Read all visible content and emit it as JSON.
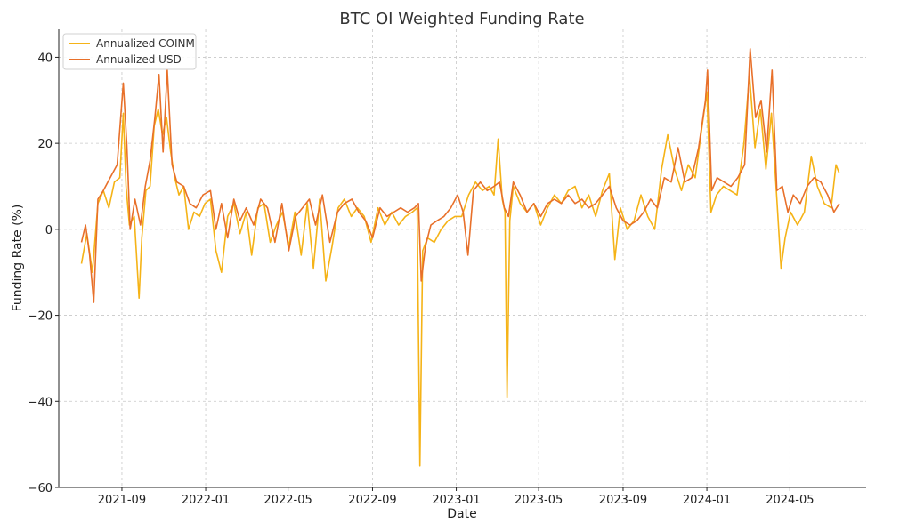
{
  "chart_data": {
    "type": "line",
    "title": "BTC OI Weighted Funding Rate",
    "xlabel": "Date",
    "ylabel": "Funding Rate (%)",
    "xlim": [
      "2021-06-01",
      "2024-08-20"
    ],
    "ylim": [
      -60,
      46.5
    ],
    "yticks": [
      -60,
      -40,
      -20,
      0,
      20,
      40
    ],
    "ytick_labels": [
      "−60",
      "−40",
      "−20",
      "0",
      "20",
      "40"
    ],
    "xticks": [
      "2021-09-01",
      "2022-01-01",
      "2022-05-01",
      "2022-09-01",
      "2023-01-01",
      "2023-05-01",
      "2023-09-01",
      "2024-01-01",
      "2024-05-01"
    ],
    "xtick_labels": [
      "2021-09",
      "2022-01",
      "2022-05",
      "2022-09",
      "2023-01",
      "2023-05",
      "2023-09",
      "2024-01",
      "2024-05"
    ],
    "grid": true,
    "legend": {
      "position": "top-left"
    },
    "series": [
      {
        "name": "Annualized COINM",
        "color": "#f5b317",
        "points": [
          [
            "2021-07-04",
            -8
          ],
          [
            "2021-07-12",
            -1
          ],
          [
            "2021-07-20",
            -10
          ],
          [
            "2021-07-28",
            6
          ],
          [
            "2021-08-05",
            9
          ],
          [
            "2021-08-13",
            5
          ],
          [
            "2021-08-21",
            11
          ],
          [
            "2021-08-29",
            12
          ],
          [
            "2021-09-03",
            27
          ],
          [
            "2021-09-07",
            10
          ],
          [
            "2021-09-12",
            1
          ],
          [
            "2021-09-19",
            3
          ],
          [
            "2021-09-26",
            -16
          ],
          [
            "2021-09-30",
            -2
          ],
          [
            "2021-10-06",
            9
          ],
          [
            "2021-10-12",
            10
          ],
          [
            "2021-10-18",
            24
          ],
          [
            "2021-10-24",
            28
          ],
          [
            "2021-10-30",
            22
          ],
          [
            "2021-11-05",
            26
          ],
          [
            "2021-11-11",
            18
          ],
          [
            "2021-11-17",
            12
          ],
          [
            "2021-11-23",
            8
          ],
          [
            "2021-11-30",
            10
          ],
          [
            "2021-12-07",
            0
          ],
          [
            "2021-12-15",
            4
          ],
          [
            "2021-12-23",
            3
          ],
          [
            "2021-12-31",
            6
          ],
          [
            "2022-01-08",
            7
          ],
          [
            "2022-01-16",
            -5
          ],
          [
            "2022-01-24",
            -10
          ],
          [
            "2022-02-02",
            3
          ],
          [
            "2022-02-11",
            6
          ],
          [
            "2022-02-20",
            -1
          ],
          [
            "2022-03-01",
            4
          ],
          [
            "2022-03-09",
            -6
          ],
          [
            "2022-03-18",
            5
          ],
          [
            "2022-03-27",
            6
          ],
          [
            "2022-04-05",
            -3
          ],
          [
            "2022-04-14",
            1
          ],
          [
            "2022-04-23",
            4
          ],
          [
            "2022-05-02",
            -4
          ],
          [
            "2022-05-11",
            4
          ],
          [
            "2022-05-20",
            -6
          ],
          [
            "2022-05-29",
            6
          ],
          [
            "2022-06-07",
            -9
          ],
          [
            "2022-06-16",
            7
          ],
          [
            "2022-06-25",
            -12
          ],
          [
            "2022-07-04",
            -4
          ],
          [
            "2022-07-13",
            5
          ],
          [
            "2022-07-22",
            7
          ],
          [
            "2022-08-01",
            3
          ],
          [
            "2022-08-10",
            5
          ],
          [
            "2022-08-20",
            3
          ],
          [
            "2022-08-30",
            -3
          ],
          [
            "2022-09-09",
            5
          ],
          [
            "2022-09-19",
            1
          ],
          [
            "2022-09-29",
            4
          ],
          [
            "2022-10-09",
            1
          ],
          [
            "2022-10-19",
            3
          ],
          [
            "2022-10-29",
            4
          ],
          [
            "2022-11-05",
            5
          ],
          [
            "2022-11-09",
            -55
          ],
          [
            "2022-11-13",
            -5
          ],
          [
            "2022-11-20",
            -2
          ],
          [
            "2022-11-30",
            -3
          ],
          [
            "2022-12-10",
            0
          ],
          [
            "2022-12-20",
            2
          ],
          [
            "2022-12-30",
            3
          ],
          [
            "2023-01-09",
            3
          ],
          [
            "2023-01-19",
            8
          ],
          [
            "2023-01-29",
            11
          ],
          [
            "2023-02-08",
            9
          ],
          [
            "2023-02-18",
            10
          ],
          [
            "2023-02-25",
            8
          ],
          [
            "2023-03-03",
            21
          ],
          [
            "2023-03-09",
            7
          ],
          [
            "2023-03-13",
            4
          ],
          [
            "2023-03-16",
            -39
          ],
          [
            "2023-03-20",
            2
          ],
          [
            "2023-03-25",
            10
          ],
          [
            "2023-04-04",
            6
          ],
          [
            "2023-04-14",
            4
          ],
          [
            "2023-04-24",
            6
          ],
          [
            "2023-05-04",
            1
          ],
          [
            "2023-05-14",
            5
          ],
          [
            "2023-05-24",
            8
          ],
          [
            "2023-06-03",
            6
          ],
          [
            "2023-06-13",
            9
          ],
          [
            "2023-06-23",
            10
          ],
          [
            "2023-07-03",
            5
          ],
          [
            "2023-07-13",
            8
          ],
          [
            "2023-07-23",
            3
          ],
          [
            "2023-08-02",
            9
          ],
          [
            "2023-08-12",
            13
          ],
          [
            "2023-08-20",
            -7
          ],
          [
            "2023-08-28",
            5
          ],
          [
            "2023-09-07",
            0
          ],
          [
            "2023-09-17",
            2
          ],
          [
            "2023-09-27",
            8
          ],
          [
            "2023-10-07",
            3
          ],
          [
            "2023-10-17",
            0
          ],
          [
            "2023-10-27",
            14
          ],
          [
            "2023-11-05",
            22
          ],
          [
            "2023-11-15",
            14
          ],
          [
            "2023-11-25",
            9
          ],
          [
            "2023-12-05",
            15
          ],
          [
            "2023-12-15",
            12
          ],
          [
            "2023-12-25",
            24
          ],
          [
            "2024-01-01",
            32
          ],
          [
            "2024-01-07",
            4
          ],
          [
            "2024-01-15",
            8
          ],
          [
            "2024-01-25",
            10
          ],
          [
            "2024-02-04",
            9
          ],
          [
            "2024-02-14",
            8
          ],
          [
            "2024-02-24",
            20
          ],
          [
            "2024-03-03",
            36
          ],
          [
            "2024-03-11",
            19
          ],
          [
            "2024-03-19",
            28
          ],
          [
            "2024-03-27",
            14
          ],
          [
            "2024-04-04",
            27
          ],
          [
            "2024-04-12",
            7
          ],
          [
            "2024-04-18",
            -9
          ],
          [
            "2024-04-24",
            -2
          ],
          [
            "2024-05-02",
            4
          ],
          [
            "2024-05-12",
            1
          ],
          [
            "2024-05-22",
            4
          ],
          [
            "2024-06-01",
            17
          ],
          [
            "2024-06-10",
            10
          ],
          [
            "2024-06-20",
            6
          ],
          [
            "2024-06-30",
            5
          ],
          [
            "2024-07-07",
            15
          ],
          [
            "2024-07-12",
            13
          ]
        ]
      },
      {
        "name": "Annualized USD",
        "color": "#e8702a",
        "points": [
          [
            "2021-07-04",
            -3
          ],
          [
            "2021-07-10",
            1
          ],
          [
            "2021-07-16",
            -6
          ],
          [
            "2021-07-22",
            -17
          ],
          [
            "2021-07-28",
            7
          ],
          [
            "2021-08-05",
            9
          ],
          [
            "2021-08-15",
            12
          ],
          [
            "2021-08-25",
            15
          ],
          [
            "2021-09-03",
            34
          ],
          [
            "2021-09-08",
            20
          ],
          [
            "2021-09-13",
            0
          ],
          [
            "2021-09-20",
            7
          ],
          [
            "2021-09-28",
            1
          ],
          [
            "2021-10-05",
            10
          ],
          [
            "2021-10-12",
            16
          ],
          [
            "2021-10-19",
            26
          ],
          [
            "2021-10-25",
            36
          ],
          [
            "2021-10-31",
            18
          ],
          [
            "2021-11-06",
            37
          ],
          [
            "2021-11-13",
            15
          ],
          [
            "2021-11-20",
            11
          ],
          [
            "2021-11-30",
            10
          ],
          [
            "2021-12-09",
            6
          ],
          [
            "2021-12-18",
            5
          ],
          [
            "2021-12-28",
            8
          ],
          [
            "2022-01-08",
            9
          ],
          [
            "2022-01-16",
            0
          ],
          [
            "2022-01-24",
            6
          ],
          [
            "2022-02-02",
            -2
          ],
          [
            "2022-02-11",
            7
          ],
          [
            "2022-02-20",
            2
          ],
          [
            "2022-03-01",
            5
          ],
          [
            "2022-03-12",
            1
          ],
          [
            "2022-03-22",
            7
          ],
          [
            "2022-04-01",
            5
          ],
          [
            "2022-04-12",
            -3
          ],
          [
            "2022-04-22",
            6
          ],
          [
            "2022-05-02",
            -5
          ],
          [
            "2022-05-12",
            3
          ],
          [
            "2022-05-22",
            5
          ],
          [
            "2022-06-01",
            7
          ],
          [
            "2022-06-10",
            1
          ],
          [
            "2022-06-20",
            8
          ],
          [
            "2022-07-01",
            -3
          ],
          [
            "2022-07-12",
            4
          ],
          [
            "2022-07-22",
            6
          ],
          [
            "2022-08-02",
            7
          ],
          [
            "2022-08-12",
            4
          ],
          [
            "2022-08-22",
            2
          ],
          [
            "2022-09-01",
            -2
          ],
          [
            "2022-09-12",
            5
          ],
          [
            "2022-09-22",
            3
          ],
          [
            "2022-10-02",
            4
          ],
          [
            "2022-10-12",
            5
          ],
          [
            "2022-10-22",
            4
          ],
          [
            "2022-11-01",
            5
          ],
          [
            "2022-11-07",
            6
          ],
          [
            "2022-11-11",
            -12
          ],
          [
            "2022-11-17",
            -4
          ],
          [
            "2022-11-25",
            1
          ],
          [
            "2022-12-04",
            2
          ],
          [
            "2022-12-14",
            3
          ],
          [
            "2022-12-24",
            5
          ],
          [
            "2023-01-03",
            8
          ],
          [
            "2023-01-11",
            4
          ],
          [
            "2023-01-18",
            -6
          ],
          [
            "2023-01-26",
            9
          ],
          [
            "2023-02-05",
            11
          ],
          [
            "2023-02-15",
            9
          ],
          [
            "2023-02-25",
            10
          ],
          [
            "2023-03-05",
            11
          ],
          [
            "2023-03-12",
            5
          ],
          [
            "2023-03-18",
            3
          ],
          [
            "2023-03-25",
            11
          ],
          [
            "2023-04-04",
            8
          ],
          [
            "2023-04-14",
            4
          ],
          [
            "2023-04-24",
            6
          ],
          [
            "2023-05-04",
            3
          ],
          [
            "2023-05-14",
            6
          ],
          [
            "2023-05-24",
            7
          ],
          [
            "2023-06-03",
            6
          ],
          [
            "2023-06-13",
            8
          ],
          [
            "2023-06-23",
            6
          ],
          [
            "2023-07-03",
            7
          ],
          [
            "2023-07-13",
            5
          ],
          [
            "2023-07-23",
            6
          ],
          [
            "2023-08-02",
            8
          ],
          [
            "2023-08-12",
            10
          ],
          [
            "2023-08-22",
            5
          ],
          [
            "2023-09-01",
            2
          ],
          [
            "2023-09-11",
            1
          ],
          [
            "2023-09-21",
            2
          ],
          [
            "2023-10-01",
            4
          ],
          [
            "2023-10-11",
            7
          ],
          [
            "2023-10-21",
            5
          ],
          [
            "2023-10-31",
            12
          ],
          [
            "2023-11-10",
            11
          ],
          [
            "2023-11-20",
            19
          ],
          [
            "2023-11-30",
            11
          ],
          [
            "2023-12-10",
            12
          ],
          [
            "2023-12-20",
            19
          ],
          [
            "2023-12-30",
            30
          ],
          [
            "2024-01-02",
            37
          ],
          [
            "2024-01-08",
            9
          ],
          [
            "2024-01-16",
            12
          ],
          [
            "2024-01-26",
            11
          ],
          [
            "2024-02-05",
            10
          ],
          [
            "2024-02-15",
            12
          ],
          [
            "2024-02-25",
            15
          ],
          [
            "2024-03-04",
            42
          ],
          [
            "2024-03-12",
            26
          ],
          [
            "2024-03-20",
            30
          ],
          [
            "2024-03-28",
            18
          ],
          [
            "2024-04-05",
            37
          ],
          [
            "2024-04-12",
            9
          ],
          [
            "2024-04-20",
            10
          ],
          [
            "2024-04-28",
            4
          ],
          [
            "2024-05-06",
            8
          ],
          [
            "2024-05-16",
            6
          ],
          [
            "2024-05-26",
            10
          ],
          [
            "2024-06-05",
            12
          ],
          [
            "2024-06-15",
            11
          ],
          [
            "2024-06-25",
            8
          ],
          [
            "2024-07-04",
            4
          ],
          [
            "2024-07-12",
            6
          ]
        ]
      }
    ]
  }
}
